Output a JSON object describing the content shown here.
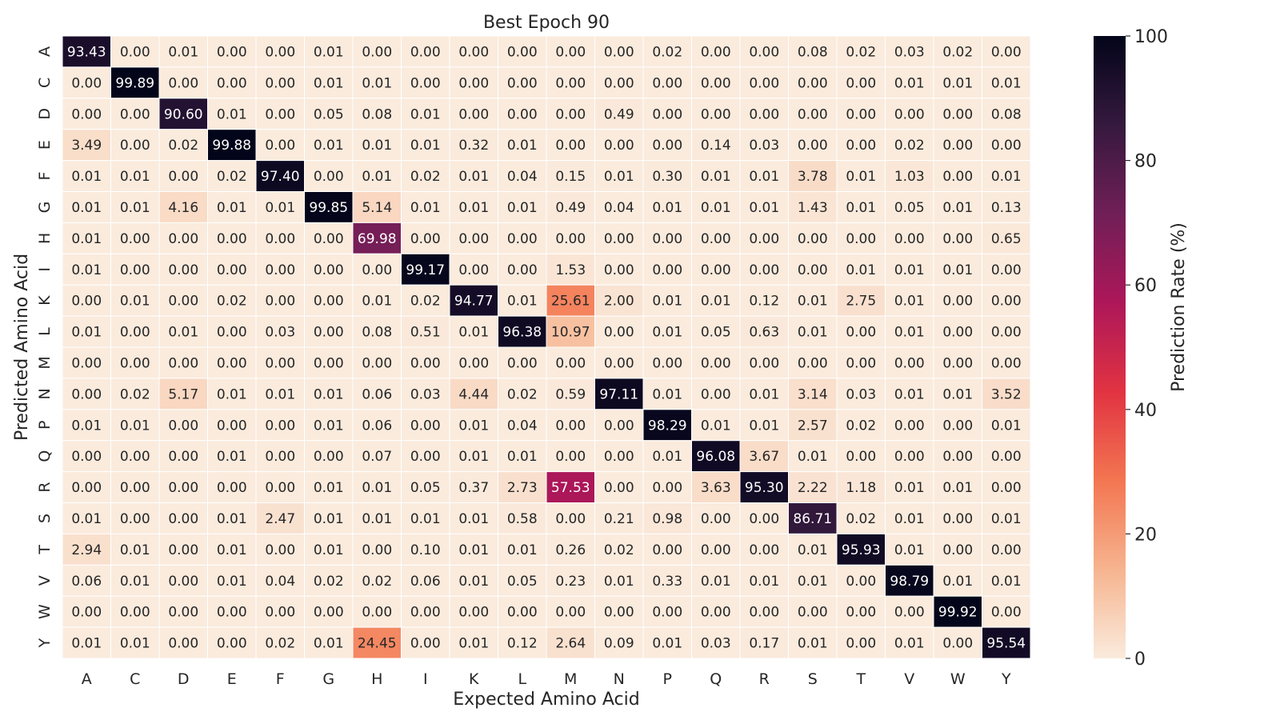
{
  "chart_data": {
    "type": "heatmap",
    "title": "Best Epoch 90",
    "xlabel": "Expected Amino Acid",
    "ylabel": "Predicted Amino Acid",
    "x_categories": [
      "A",
      "C",
      "D",
      "E",
      "F",
      "G",
      "H",
      "I",
      "K",
      "L",
      "M",
      "N",
      "P",
      "Q",
      "R",
      "S",
      "T",
      "V",
      "W",
      "Y"
    ],
    "y_categories": [
      "A",
      "C",
      "D",
      "E",
      "F",
      "G",
      "H",
      "I",
      "K",
      "L",
      "M",
      "N",
      "P",
      "Q",
      "R",
      "S",
      "T",
      "V",
      "W",
      "Y"
    ],
    "values": [
      [
        93.43,
        0.0,
        0.01,
        0.0,
        0.0,
        0.01,
        0.0,
        0.0,
        0.0,
        0.0,
        0.0,
        0.0,
        0.02,
        0.0,
        0.0,
        0.08,
        0.02,
        0.03,
        0.02,
        0.0
      ],
      [
        0.0,
        99.89,
        0.0,
        0.0,
        0.0,
        0.01,
        0.01,
        0.0,
        0.0,
        0.0,
        0.0,
        0.0,
        0.0,
        0.0,
        0.0,
        0.0,
        0.0,
        0.01,
        0.01,
        0.01
      ],
      [
        0.0,
        0.0,
        90.6,
        0.01,
        0.0,
        0.05,
        0.08,
        0.01,
        0.0,
        0.0,
        0.0,
        0.49,
        0.0,
        0.0,
        0.0,
        0.0,
        0.0,
        0.0,
        0.0,
        0.08
      ],
      [
        3.49,
        0.0,
        0.02,
        99.88,
        0.0,
        0.01,
        0.01,
        0.01,
        0.32,
        0.01,
        0.0,
        0.0,
        0.0,
        0.14,
        0.03,
        0.0,
        0.0,
        0.02,
        0.0,
        0.0
      ],
      [
        0.01,
        0.01,
        0.0,
        0.02,
        97.4,
        0.0,
        0.01,
        0.02,
        0.01,
        0.04,
        0.15,
        0.01,
        0.3,
        0.01,
        0.01,
        3.78,
        0.01,
        1.03,
        0.0,
        0.01
      ],
      [
        0.01,
        0.01,
        4.16,
        0.01,
        0.01,
        99.85,
        5.14,
        0.01,
        0.01,
        0.01,
        0.49,
        0.04,
        0.01,
        0.01,
        0.01,
        1.43,
        0.01,
        0.05,
        0.01,
        0.13
      ],
      [
        0.01,
        0.0,
        0.0,
        0.0,
        0.0,
        0.0,
        69.98,
        0.0,
        0.0,
        0.0,
        0.0,
        0.0,
        0.0,
        0.0,
        0.0,
        0.0,
        0.0,
        0.0,
        0.0,
        0.65
      ],
      [
        0.01,
        0.0,
        0.0,
        0.0,
        0.0,
        0.0,
        0.0,
        99.17,
        0.0,
        0.0,
        1.53,
        0.0,
        0.0,
        0.0,
        0.0,
        0.0,
        0.01,
        0.01,
        0.01,
        0.0
      ],
      [
        0.0,
        0.01,
        0.0,
        0.02,
        0.0,
        0.0,
        0.01,
        0.02,
        94.77,
        0.01,
        25.61,
        2.0,
        0.01,
        0.01,
        0.12,
        0.01,
        2.75,
        0.01,
        0.0,
        0.0
      ],
      [
        0.01,
        0.0,
        0.01,
        0.0,
        0.03,
        0.0,
        0.08,
        0.51,
        0.01,
        96.38,
        10.97,
        0.0,
        0.01,
        0.05,
        0.63,
        0.01,
        0.0,
        0.01,
        0.0,
        0.0
      ],
      [
        0.0,
        0.0,
        0.0,
        0.0,
        0.0,
        0.0,
        0.0,
        0.0,
        0.0,
        0.0,
        0.0,
        0.0,
        0.0,
        0.0,
        0.0,
        0.0,
        0.0,
        0.0,
        0.0,
        0.0
      ],
      [
        0.0,
        0.02,
        5.17,
        0.01,
        0.01,
        0.01,
        0.06,
        0.03,
        4.44,
        0.02,
        0.59,
        97.11,
        0.01,
        0.0,
        0.01,
        3.14,
        0.03,
        0.01,
        0.01,
        3.52
      ],
      [
        0.01,
        0.01,
        0.0,
        0.0,
        0.0,
        0.01,
        0.06,
        0.0,
        0.01,
        0.04,
        0.0,
        0.0,
        98.29,
        0.01,
        0.01,
        2.57,
        0.02,
        0.0,
        0.0,
        0.01
      ],
      [
        0.0,
        0.0,
        0.0,
        0.01,
        0.0,
        0.0,
        0.07,
        0.0,
        0.01,
        0.01,
        0.0,
        0.0,
        0.01,
        96.08,
        3.67,
        0.01,
        0.0,
        0.0,
        0.0,
        0.0
      ],
      [
        0.0,
        0.0,
        0.0,
        0.0,
        0.0,
        0.01,
        0.01,
        0.05,
        0.37,
        2.73,
        57.53,
        0.0,
        0.0,
        3.63,
        95.3,
        2.22,
        1.18,
        0.01,
        0.01,
        0.0
      ],
      [
        0.01,
        0.0,
        0.0,
        0.01,
        2.47,
        0.01,
        0.01,
        0.01,
        0.01,
        0.58,
        0.0,
        0.21,
        0.98,
        0.0,
        0.0,
        86.71,
        0.02,
        0.01,
        0.0,
        0.01
      ],
      [
        2.94,
        0.01,
        0.0,
        0.01,
        0.0,
        0.01,
        0.0,
        0.1,
        0.01,
        0.01,
        0.26,
        0.02,
        0.0,
        0.0,
        0.0,
        0.01,
        95.93,
        0.01,
        0.0,
        0.0
      ],
      [
        0.06,
        0.01,
        0.0,
        0.01,
        0.04,
        0.02,
        0.02,
        0.06,
        0.01,
        0.05,
        0.23,
        0.01,
        0.33,
        0.01,
        0.01,
        0.01,
        0.0,
        98.79,
        0.01,
        0.01
      ],
      [
        0.0,
        0.0,
        0.0,
        0.0,
        0.0,
        0.0,
        0.0,
        0.0,
        0.0,
        0.0,
        0.0,
        0.0,
        0.0,
        0.0,
        0.0,
        0.0,
        0.0,
        0.0,
        99.92,
        0.0
      ],
      [
        0.01,
        0.01,
        0.0,
        0.0,
        0.02,
        0.01,
        24.45,
        0.0,
        0.01,
        0.12,
        2.64,
        0.09,
        0.01,
        0.03,
        0.17,
        0.01,
        0.0,
        0.01,
        0.0,
        95.54
      ]
    ],
    "value_format": "0.00",
    "colorbar": {
      "label": "Prediction Rate (%)",
      "range": [
        0,
        100
      ],
      "ticks": [
        0,
        20,
        40,
        60,
        80,
        100
      ],
      "colormap": "rocket_r",
      "colors": [
        "#faebdd",
        "#f6b48f",
        "#f37651",
        "#e13342",
        "#ad1759",
        "#701f57",
        "#35193e",
        "#03051a"
      ]
    },
    "grid": false,
    "legend": "colorbar-right"
  }
}
